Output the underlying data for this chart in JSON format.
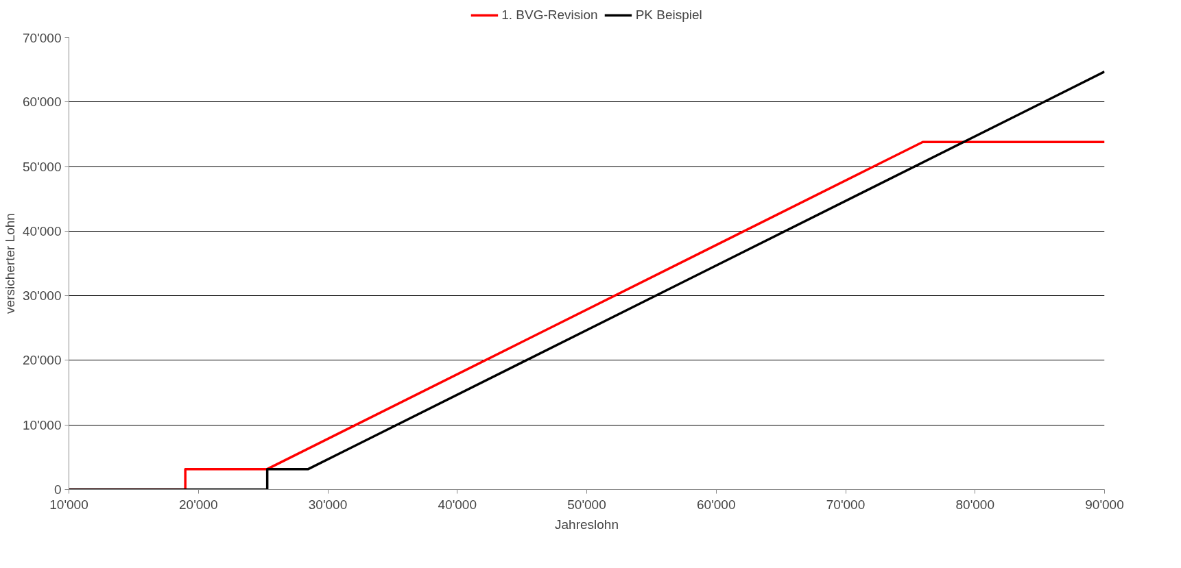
{
  "chart_data": {
    "type": "line",
    "xlabel": "Jahreslohn",
    "ylabel": "versicherter Lohn",
    "series": [
      {
        "name": "1. BVG-Revision",
        "color": "#ff0000",
        "x": [
          10000,
          18990,
          18990,
          25320,
          75960,
          90000
        ],
        "values": [
          0,
          0,
          3165,
          3165,
          53805,
          53805
        ]
      },
      {
        "name": "PK Beispiel",
        "color": "#000000",
        "x": [
          10000,
          25320,
          25320,
          28485,
          90000
        ],
        "values": [
          0,
          0,
          3165,
          3165,
          64680
        ]
      }
    ],
    "xlim": [
      10000,
      90000
    ],
    "ylim": [
      0,
      70000
    ],
    "xticks": [
      {
        "value": 10000,
        "label": "10'000"
      },
      {
        "value": 20000,
        "label": "20'000"
      },
      {
        "value": 30000,
        "label": "30'000"
      },
      {
        "value": 40000,
        "label": "40'000"
      },
      {
        "value": 50000,
        "label": "50'000"
      },
      {
        "value": 60000,
        "label": "60'000"
      },
      {
        "value": 70000,
        "label": "70'000"
      },
      {
        "value": 80000,
        "label": "80'000"
      },
      {
        "value": 90000,
        "label": "90'000"
      }
    ],
    "yticks": [
      0,
      {
        "value": 10000,
        "label": "10'000"
      },
      {
        "value": 20000,
        "label": "20'000"
      },
      {
        "value": 30000,
        "label": "30'000"
      },
      {
        "value": 40000,
        "label": "40'000"
      },
      {
        "value": 50000,
        "label": "50'000"
      },
      {
        "value": 60000,
        "label": "60'000"
      },
      {
        "value": 70000,
        "label": "70'000"
      }
    ],
    "grid": "y",
    "legend": "top",
    "marker": "none",
    "line_style": "solid"
  }
}
